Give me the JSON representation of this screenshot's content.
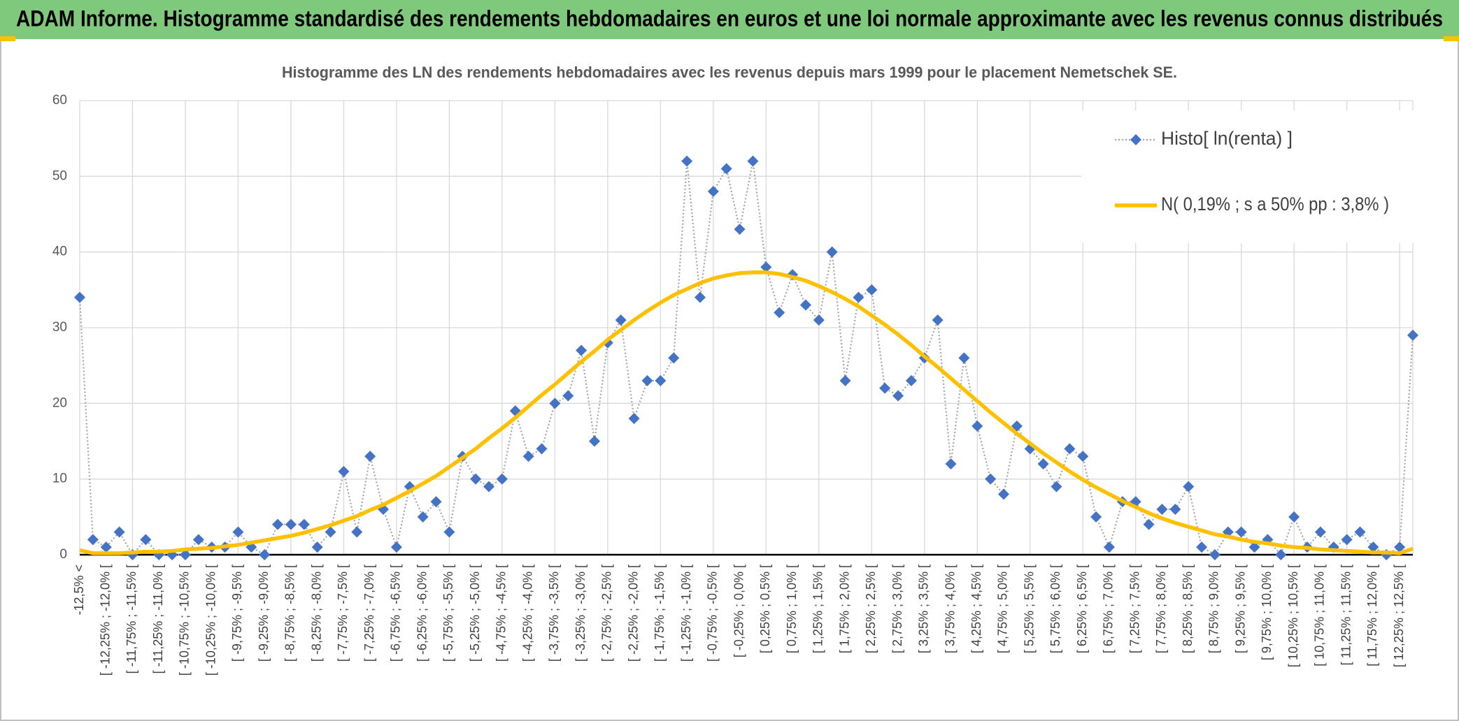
{
  "header": {
    "title": "ADAM Informe. Histogramme standardisé des rendements hebdomadaires en euros et une loi normale approximante avec les revenus connus distribués"
  },
  "chart_data": {
    "type": "line",
    "title": "Histogramme des LN des rendements hebdomadaires avec les revenus depuis mars 1999 pour le placement Nemetschek SE.",
    "categories": [
      "-12,5% <",
      null,
      "[ -12,25% ; -12,0% [",
      null,
      "[ -11,75% ; -11,5% [",
      null,
      "[ -11,25% ; -11,0% [",
      null,
      "[ -10,75% ; -10,5% [",
      null,
      "[ -10,25% ; -10,0% [",
      null,
      "[ -9,75% ; -9,5% [",
      null,
      "[ -9,25% ; -9,0% [",
      null,
      "[ -8,75% ; -8,5% [",
      null,
      "[ -8,25% ; -8,0% [",
      null,
      "[ -7,75% ; -7,5% [",
      null,
      "[ -7,25% ; -7,0% [",
      null,
      "[ -6,75% ; -6,5% [",
      null,
      "[ -6,25% ; -6,0% [",
      null,
      "[ -5,75% ; -5,5% [",
      null,
      "[ -5,25% ; -5,0% [",
      null,
      "[ -4,75% ; -4,5% [",
      null,
      "[ -4,25% ; -4,0% [",
      null,
      "[ -3,75% ; -3,5% [",
      null,
      "[ -3,25% ; -3,0% [",
      null,
      "[ -2,75% ; -2,5% [",
      null,
      "[ -2,25% ; -2,0% [",
      null,
      "[ -1,75% ; -1,5% [",
      null,
      "[ -1,25% ; -1,0% [",
      null,
      "[ -0,75% ; -0,5% [",
      null,
      "[ -0,25% ; 0,0% [",
      null,
      "[ 0,25% ; 0,5% [",
      null,
      "[ 0,75% ; 1,0% [",
      null,
      "[ 1,25% ; 1,5% [",
      null,
      "[ 1,75% ; 2,0% [",
      null,
      "[ 2,25% ; 2,5% [",
      null,
      "[ 2,75% ; 3,0% [",
      null,
      "[ 3,25% ; 3,5% [",
      null,
      "[ 3,75% ; 4,0% [",
      null,
      "[ 4,25% ; 4,5% [",
      null,
      "[ 4,75% ; 5,0% [",
      null,
      "[ 5,25% ; 5,5% [",
      null,
      "[ 5,75% ; 6,0% [",
      null,
      "[ 6,25% ; 6,5% [",
      null,
      "[ 6,75% ; 7,0% [",
      null,
      "[ 7,25% ; 7,5% [",
      null,
      "[ 7,75% ; 8,0% [",
      null,
      "[ 8,25% ; 8,5% [",
      null,
      "[ 8,75% ; 9,0% [",
      null,
      "[ 9,25% ; 9,5% [",
      null,
      "[ 9,75% ; 10,0% [",
      null,
      "[ 10,25% ; 10,5% [",
      null,
      "[ 10,75% ; 11,0% [",
      null,
      "[ 11,25% ; 11,5% [",
      null,
      "[ 11,75% ; 12,0% [",
      null,
      "[ 12,25% ; 12,5% [",
      null
    ],
    "series": [
      {
        "name": "Histo[ ln(renta) ]",
        "color": "#4472c4",
        "line_color": "#a5a5a5",
        "marker": "diamond",
        "values": [
          34,
          2,
          1,
          3,
          0,
          2,
          0,
          0,
          0,
          2,
          1,
          1,
          3,
          1,
          0,
          4,
          4,
          4,
          1,
          3,
          11,
          3,
          13,
          6,
          1,
          9,
          5,
          7,
          3,
          13,
          10,
          9,
          10,
          19,
          13,
          14,
          20,
          21,
          27,
          15,
          28,
          31,
          18,
          23,
          23,
          26,
          52,
          34,
          48,
          51,
          43,
          52,
          38,
          32,
          37,
          33,
          31,
          40,
          23,
          34,
          35,
          22,
          21,
          23,
          26,
          31,
          12,
          26,
          17,
          10,
          8,
          17,
          14,
          12,
          9,
          14,
          13,
          5,
          1,
          7,
          7,
          4,
          6,
          6,
          9,
          1,
          0,
          3,
          3,
          1,
          2,
          0,
          5,
          1,
          3,
          1,
          2,
          3,
          1,
          0,
          1,
          29
        ]
      },
      {
        "name": "N( 0,19% ; s a 50% pp : 3,8% )",
        "color": "#ffc000",
        "values": [
          0.6,
          0.2,
          0.2,
          0.2,
          0.3,
          0.4,
          0.4,
          0.5,
          0.7,
          0.8,
          0.9,
          1.1,
          1.3,
          1.6,
          1.9,
          2.2,
          2.5,
          2.9,
          3.4,
          3.9,
          4.5,
          5.1,
          5.9,
          6.6,
          7.5,
          8.4,
          9.4,
          10.4,
          11.6,
          12.8,
          14.0,
          15.4,
          16.7,
          18.1,
          19.6,
          21.1,
          22.5,
          24.0,
          25.5,
          26.9,
          28.4,
          29.7,
          31.0,
          32.2,
          33.3,
          34.3,
          35.1,
          35.9,
          36.5,
          36.9,
          37.2,
          37.3,
          37.3,
          37.1,
          36.7,
          36.2,
          35.5,
          34.7,
          33.8,
          32.8,
          31.6,
          30.4,
          29.1,
          27.7,
          26.2,
          24.8,
          23.3,
          21.8,
          20.3,
          18.8,
          17.4,
          16.0,
          14.7,
          13.4,
          12.2,
          11.0,
          9.9,
          8.9,
          8.0,
          7.1,
          6.3,
          5.5,
          4.8,
          4.2,
          3.7,
          3.2,
          2.7,
          2.4,
          2.0,
          1.7,
          1.5,
          1.2,
          1.0,
          0.9,
          0.7,
          0.6,
          0.5,
          0.4,
          0.3,
          0.3,
          0.2,
          0.8
        ]
      }
    ],
    "ylim": [
      0,
      60
    ],
    "yticks": [
      0,
      10,
      20,
      30,
      40,
      50,
      60
    ],
    "grid": true,
    "legend": "upper right"
  }
}
